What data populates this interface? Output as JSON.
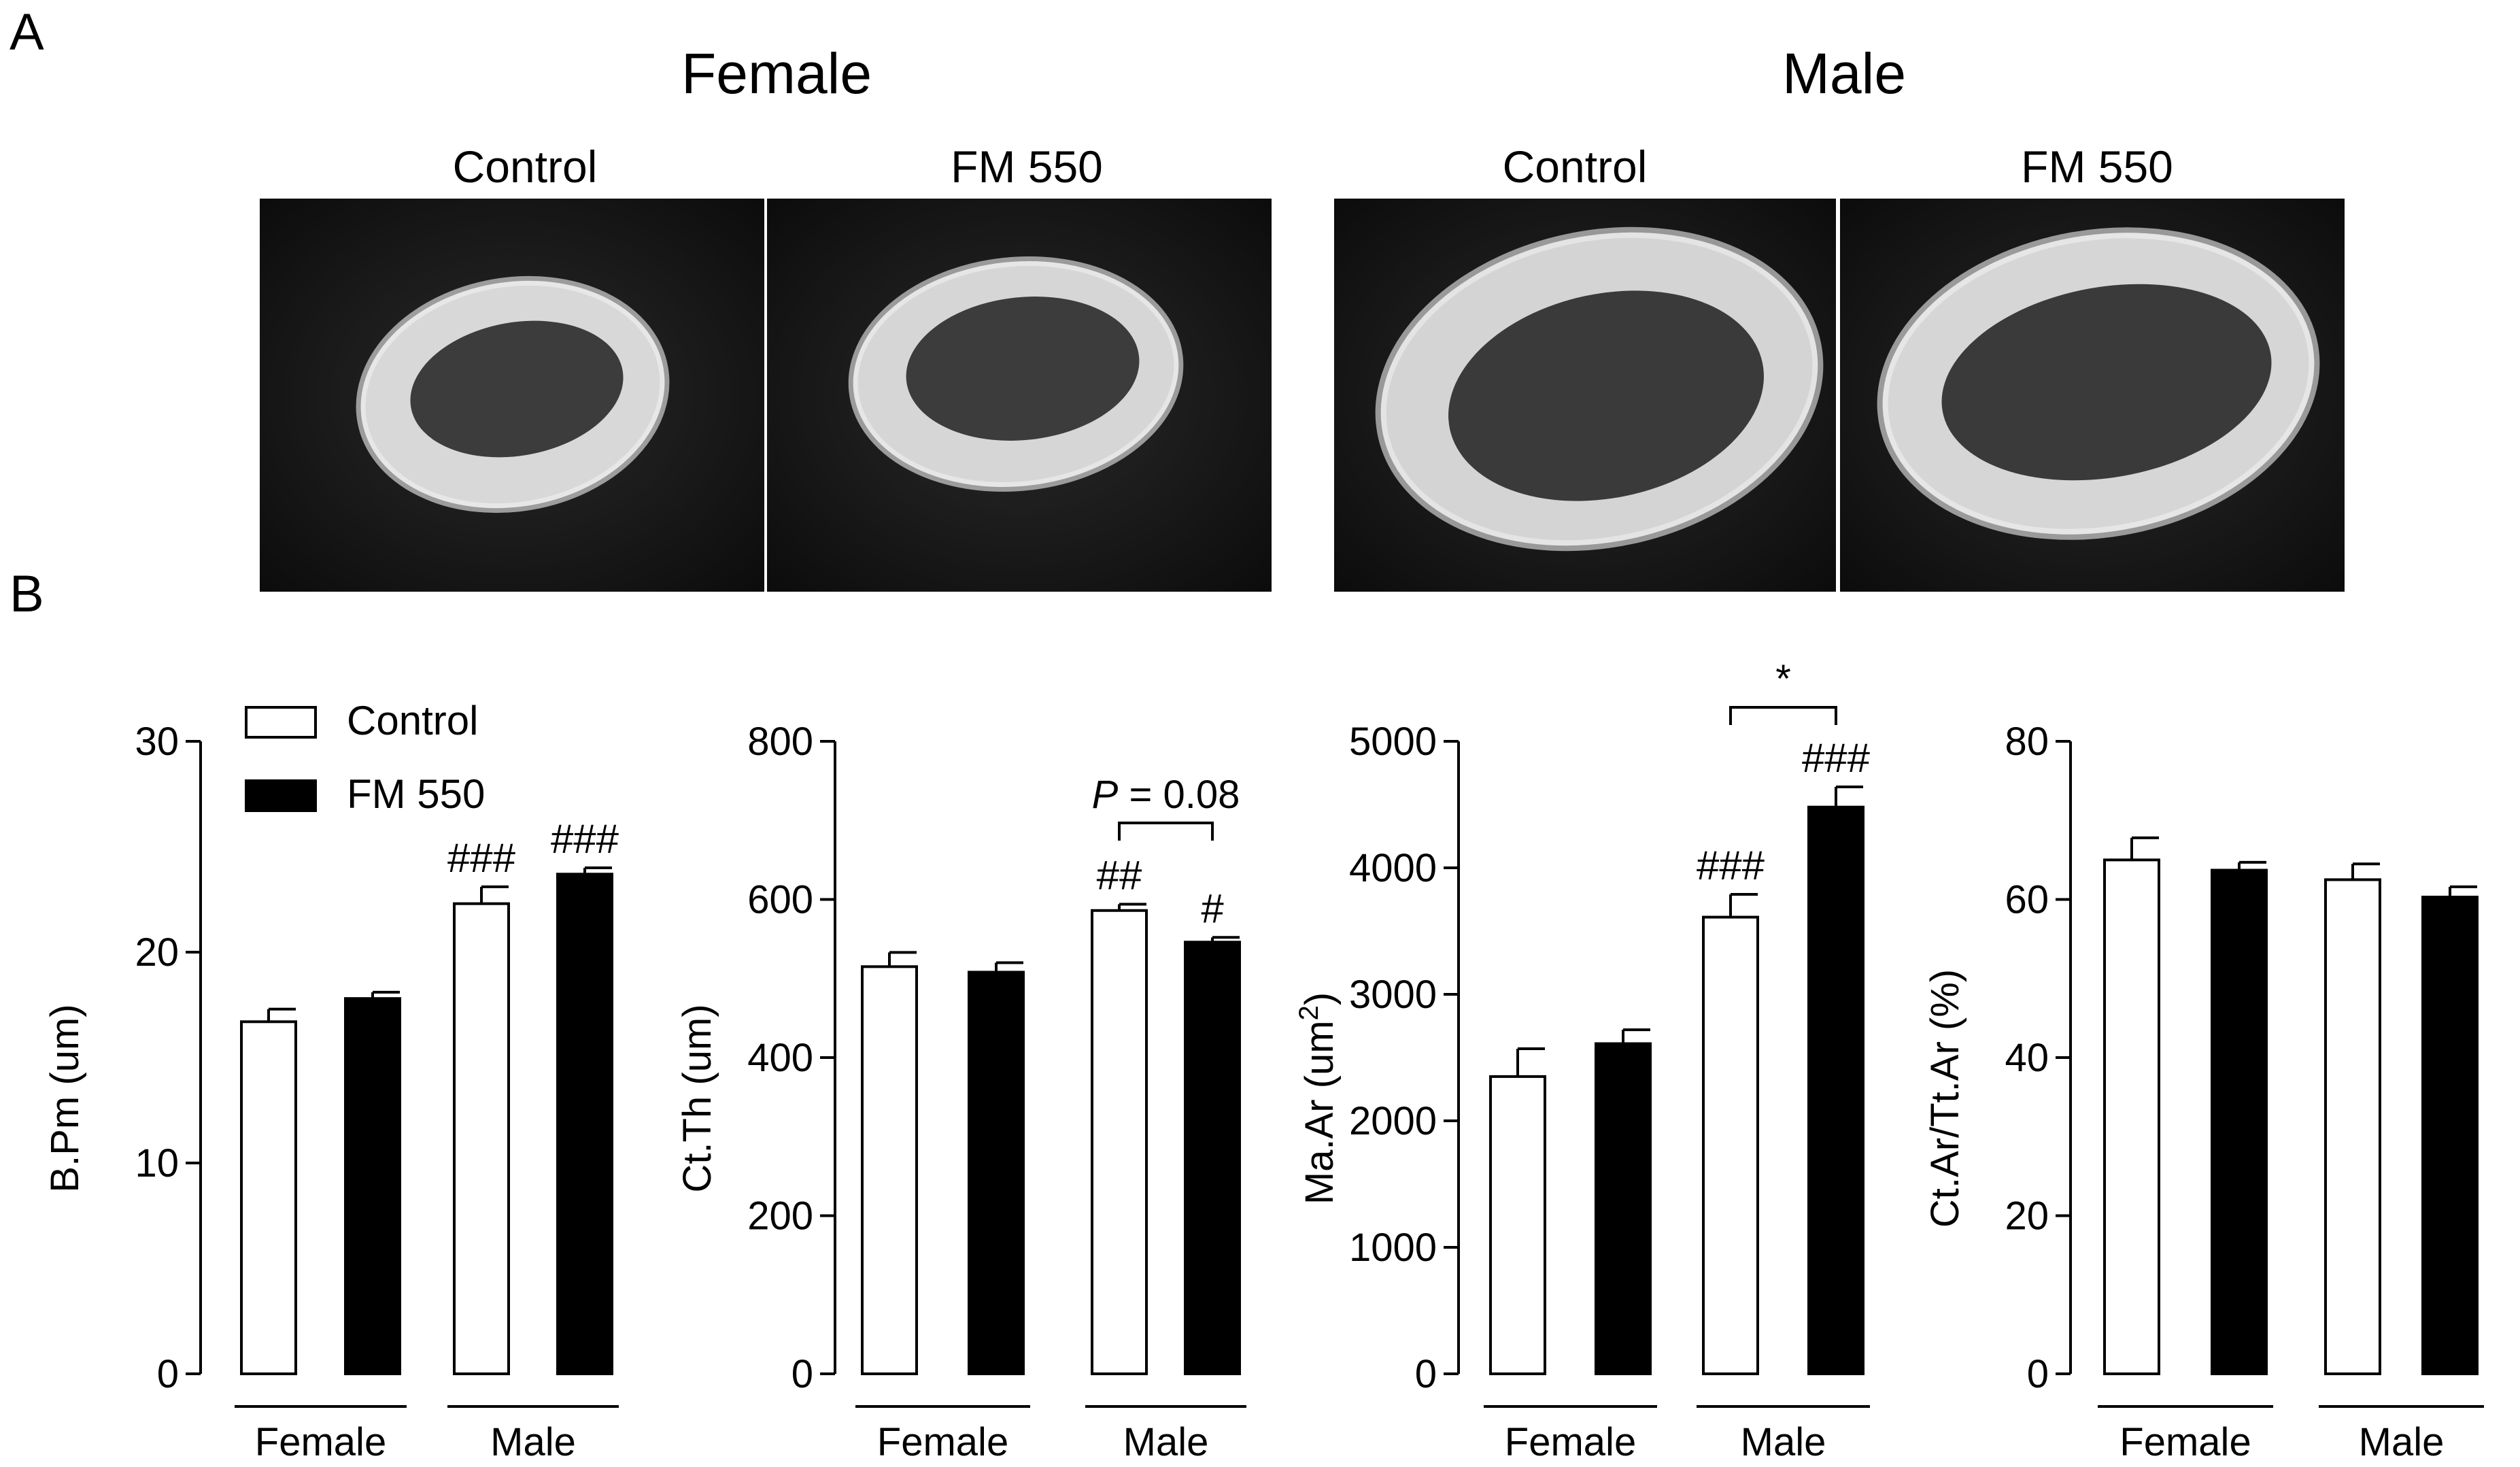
{
  "panel_a": {
    "letter": "A",
    "groups": [
      {
        "title": "Female",
        "images": [
          {
            "label": "Control"
          },
          {
            "label": "FM 550"
          }
        ]
      },
      {
        "title": "Male",
        "images": [
          {
            "label": "Control"
          },
          {
            "label": "FM 550"
          }
        ]
      }
    ]
  },
  "panel_b": {
    "letter": "B"
  },
  "legend": {
    "entries": [
      "Control",
      "FM 550"
    ]
  },
  "colors": {
    "control_fill": "#ffffff",
    "fm550_fill": "#000000",
    "stroke": "#000000"
  },
  "chart_data": [
    {
      "type": "bar",
      "ylabel": "B.Pm (um)",
      "ylim": [
        0,
        30
      ],
      "yticks": [
        0,
        10,
        20,
        30
      ],
      "categories": [
        "Female",
        "Male"
      ],
      "series": [
        {
          "name": "Control",
          "values": [
            16.7,
            22.3
          ],
          "errors": [
            0.6,
            0.8
          ]
        },
        {
          "name": "FM 550",
          "values": [
            17.8,
            23.7
          ],
          "errors": [
            0.3,
            0.3
          ]
        }
      ],
      "annotations": [
        {
          "text": "###",
          "category": 1,
          "series": 0
        },
        {
          "text": "###",
          "category": 1,
          "series": 1
        }
      ]
    },
    {
      "type": "bar",
      "ylabel": "Ct.Th (um)",
      "ylim": [
        0,
        800
      ],
      "yticks": [
        0,
        200,
        400,
        600,
        800
      ],
      "categories": [
        "Female",
        "Male"
      ],
      "series": [
        {
          "name": "Control",
          "values": [
            515,
            586
          ],
          "errors": [
            18,
            8
          ]
        },
        {
          "name": "FM 550",
          "values": [
            508,
            546
          ],
          "errors": [
            12,
            6
          ]
        }
      ],
      "annotations": [
        {
          "text": "##",
          "category": 1,
          "series": 0
        },
        {
          "text": "#",
          "category": 1,
          "series": 1
        }
      ],
      "bracket": {
        "category": 1,
        "prefix": "P",
        "text": " = 0.08"
      }
    },
    {
      "type": "bar",
      "ylabel": "Ma.Ar (um",
      "ylabel_sup": "2",
      "ylabel_end": ")",
      "ylim": [
        0,
        5000
      ],
      "yticks": [
        0,
        1000,
        2000,
        3000,
        4000,
        5000
      ],
      "categories": [
        "Female",
        "Male"
      ],
      "series": [
        {
          "name": "Control",
          "values": [
            2350,
            3610
          ],
          "errors": [
            220,
            180
          ]
        },
        {
          "name": "FM 550",
          "values": [
            2610,
            4480
          ],
          "errors": [
            110,
            160
          ]
        }
      ],
      "annotations": [
        {
          "text": "###",
          "category": 1,
          "series": 0
        },
        {
          "text": "###",
          "category": 1,
          "series": 1
        }
      ],
      "bracket": {
        "category": 1,
        "prefix": "",
        "text": "*"
      }
    },
    {
      "type": "bar",
      "ylabel": "Ct.Ar/Tt.Ar (%)",
      "ylim": [
        0,
        80
      ],
      "yticks": [
        0,
        20,
        40,
        60,
        80
      ],
      "categories": [
        "Female",
        "Male"
      ],
      "series": [
        {
          "name": "Control",
          "values": [
            65,
            62.5
          ],
          "errors": [
            2.8,
            2.0
          ]
        },
        {
          "name": "FM 550",
          "values": [
            63.7,
            60.3
          ],
          "errors": [
            1.0,
            1.3
          ]
        }
      ],
      "annotations": []
    }
  ]
}
